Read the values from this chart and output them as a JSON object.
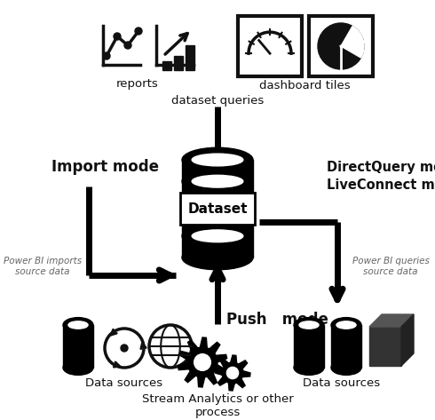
{
  "bg_color": "#ffffff",
  "labels": {
    "reports": "reports",
    "dashboard_tiles": "dashboard tiles",
    "dataset_queries": "dataset queries",
    "import_mode": "Import mode",
    "directquery_mode": "DirectQuery mode",
    "liveconnect_mode": "LiveConnect mode",
    "dataset": "Dataset",
    "push_mode": "Push   mode",
    "power_bi_imports": "Power BI imports\nsource data",
    "power_bi_queries": "Power BI queries\nsource data",
    "data_sources_left": "Data sources",
    "data_sources_right": "Data sources",
    "stream_analytics": "Stream Analytics or other\nprocess"
  }
}
